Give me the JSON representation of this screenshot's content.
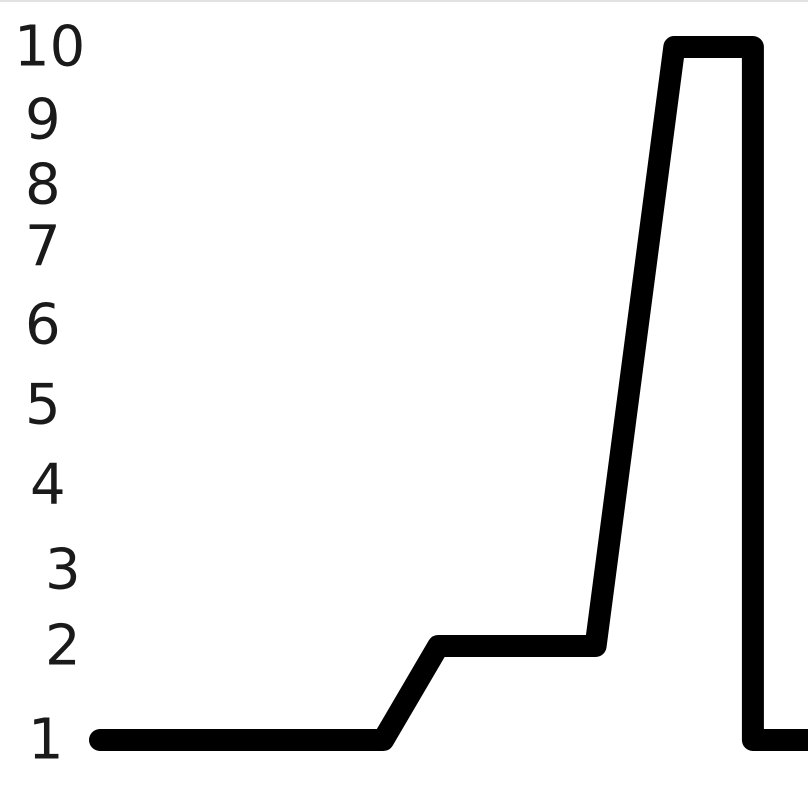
{
  "chart_data": {
    "type": "line",
    "title": "",
    "xlabel": "",
    "ylabel": "",
    "y_ticks": [
      "1",
      "2",
      "3",
      "4",
      "5",
      "6",
      "7",
      "8",
      "9",
      "10"
    ],
    "ylim": [
      1,
      10
    ],
    "grid": false,
    "legend": "none",
    "series": [
      {
        "color": "#000000",
        "x": [
          0,
          3.6,
          4.3,
          6.3,
          7.3,
          8.3,
          8.3,
          9.0
        ],
        "y": [
          1,
          1,
          2,
          2,
          10,
          10,
          1,
          1
        ]
      }
    ]
  }
}
